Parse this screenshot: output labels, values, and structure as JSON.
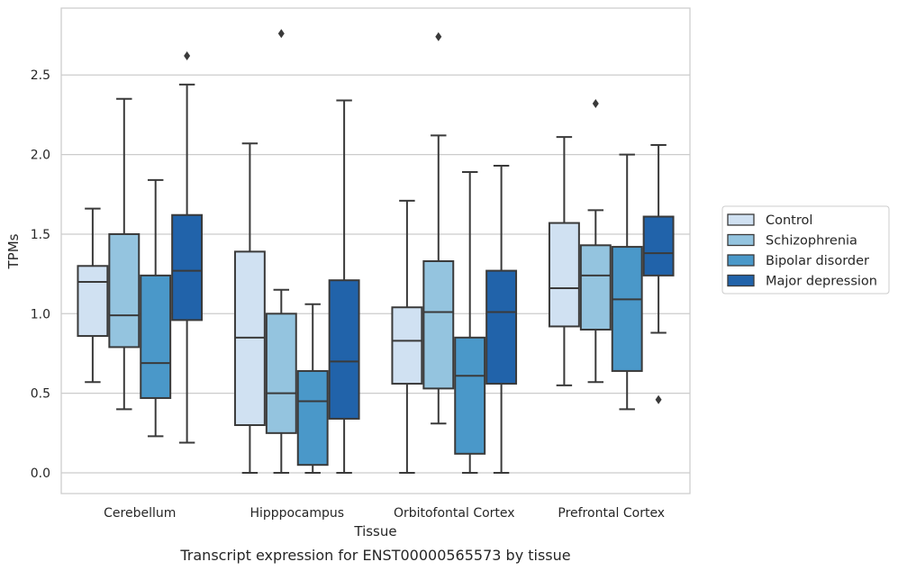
{
  "caption": "Transcript expression for ENST00000565573 by tissue",
  "chart_data": {
    "type": "box",
    "xlabel": "Tissue",
    "ylabel": "TPMs",
    "ylim": [
      -0.13,
      2.92
    ],
    "yticks": [
      0.0,
      0.5,
      1.0,
      1.5,
      2.0,
      2.5
    ],
    "ytick_labels": [
      "0.0",
      "0.5",
      "1.0",
      "1.5",
      "2.0",
      "2.5"
    ],
    "grid": "horizontal",
    "legend_position": "right",
    "categories": [
      "Cerebellum",
      "Hipppocampus",
      "Orbitofontal Cortex",
      "Prefrontal Cortex"
    ],
    "series": [
      {
        "name": "Control",
        "color": "#d0e1f2",
        "boxes": [
          {
            "whislo": 0.57,
            "q1": 0.86,
            "med": 1.2,
            "q3": 1.3,
            "whishi": 1.66,
            "fliers": []
          },
          {
            "whislo": 0.0,
            "q1": 0.3,
            "med": 0.85,
            "q3": 1.39,
            "whishi": 2.07,
            "fliers": []
          },
          {
            "whislo": 0.0,
            "q1": 0.56,
            "med": 0.83,
            "q3": 1.04,
            "whishi": 1.71,
            "fliers": []
          },
          {
            "whislo": 0.55,
            "q1": 0.92,
            "med": 1.16,
            "q3": 1.57,
            "whishi": 2.11,
            "fliers": []
          }
        ]
      },
      {
        "name": "Schizophrenia",
        "color": "#94c4df",
        "boxes": [
          {
            "whislo": 0.4,
            "q1": 0.79,
            "med": 0.99,
            "q3": 1.5,
            "whishi": 2.35,
            "fliers": []
          },
          {
            "whislo": 0.0,
            "q1": 0.25,
            "med": 0.5,
            "q3": 1.0,
            "whishi": 1.15,
            "fliers": [
              2.76
            ]
          },
          {
            "whislo": 0.31,
            "q1": 0.53,
            "med": 1.01,
            "q3": 1.33,
            "whishi": 2.12,
            "fliers": [
              2.74
            ]
          },
          {
            "whislo": 0.57,
            "q1": 0.9,
            "med": 1.24,
            "q3": 1.43,
            "whishi": 1.65,
            "fliers": [
              2.32
            ]
          }
        ]
      },
      {
        "name": "Bipolar disorder",
        "color": "#4a98c9",
        "boxes": [
          {
            "whislo": 0.23,
            "q1": 0.47,
            "med": 0.69,
            "q3": 1.24,
            "whishi": 1.84,
            "fliers": []
          },
          {
            "whislo": 0.0,
            "q1": 0.05,
            "med": 0.45,
            "q3": 0.64,
            "whishi": 1.06,
            "fliers": []
          },
          {
            "whislo": 0.0,
            "q1": 0.12,
            "med": 0.61,
            "q3": 0.85,
            "whishi": 1.89,
            "fliers": []
          },
          {
            "whislo": 0.4,
            "q1": 0.64,
            "med": 1.09,
            "q3": 1.42,
            "whishi": 2.0,
            "fliers": []
          }
        ]
      },
      {
        "name": "Major depression",
        "color": "#2163aa",
        "boxes": [
          {
            "whislo": 0.19,
            "q1": 0.96,
            "med": 1.27,
            "q3": 1.62,
            "whishi": 2.44,
            "fliers": [
              2.62
            ]
          },
          {
            "whislo": 0.0,
            "q1": 0.34,
            "med": 0.7,
            "q3": 1.21,
            "whishi": 2.34,
            "fliers": []
          },
          {
            "whislo": 0.0,
            "q1": 0.56,
            "med": 1.01,
            "q3": 1.27,
            "whishi": 1.93,
            "fliers": []
          },
          {
            "whislo": 0.88,
            "q1": 1.24,
            "med": 1.38,
            "q3": 1.61,
            "whishi": 2.06,
            "fliers": [
              0.46
            ]
          }
        ]
      }
    ]
  }
}
